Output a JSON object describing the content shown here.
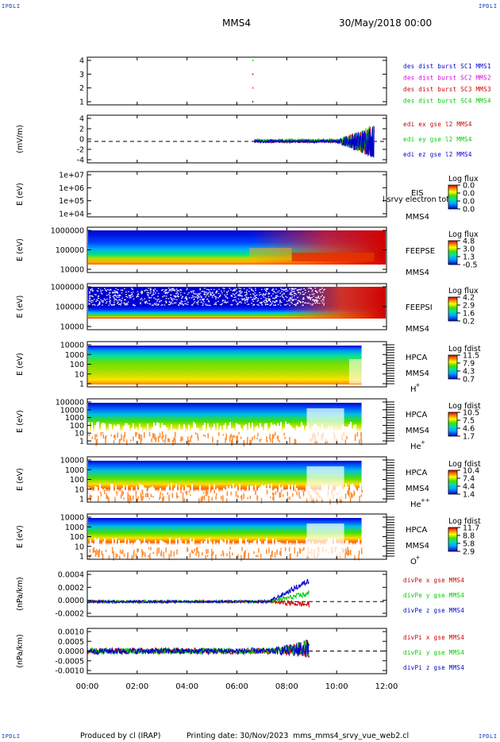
{
  "header": {
    "spacecraft": "MMS4",
    "date": "30/May/2018 00:00",
    "corner_label": "IPDLI"
  },
  "footer": {
    "produced_by": "Produced by cl (IRAP)",
    "printing_date": "Printing date: 30/Nov/2023",
    "filename": "mms_mms4_srvy_vue_web2.cl"
  },
  "colors": {
    "red": "#cc0000",
    "magenta": "#e000e0",
    "green": "#00cc00",
    "blue": "#0000cc"
  },
  "chart_data": {
    "type": "multi-panel",
    "x_ticks": [
      "00:00",
      "02:00",
      "04:00",
      "06:00",
      "08:00",
      "10:00",
      "12:00"
    ],
    "x_range_hours": [
      0,
      12
    ],
    "panels": [
      {
        "name": "burst",
        "type": "scatter",
        "ylabel": "",
        "yticks": [
          "4",
          "3",
          "2",
          "1"
        ],
        "legend": [
          {
            "text": "des dist burst SC1 MMS1",
            "color": "#0000cc"
          },
          {
            "text": "des dist burst SC2 MMS2",
            "color": "#e000e0"
          },
          {
            "text": "des dist burst SC3 MMS3",
            "color": "#cc0000"
          },
          {
            "text": "des dist burst SC4 MMS4",
            "color": "#00cc00"
          }
        ],
        "marks": [
          {
            "x": 6.62,
            "y": 4,
            "color": "#00cc00"
          },
          {
            "x": 6.62,
            "y": 3,
            "color": "#cc0000"
          },
          {
            "x": 6.62,
            "y": 2,
            "color": "#e000e0"
          },
          {
            "x": 6.62,
            "y": 1,
            "color": "#0000cc"
          }
        ]
      },
      {
        "name": "edi",
        "type": "line",
        "ylabel": "(mV/m)",
        "yticks": [
          "4",
          "2",
          "0",
          "-2",
          "-4"
        ],
        "ylim": [
          -4,
          5
        ],
        "data_start_hour": 6.7,
        "legend": [
          {
            "text": "edi ex gse l2 MMS4",
            "color": "#cc0000"
          },
          {
            "text": "edi ey gse l2 MMS4",
            "color": "#00cc00"
          },
          {
            "text": "edi ez gse l2 MMS4",
            "color": "#0000cc"
          }
        ]
      },
      {
        "name": "eis",
        "type": "heatmap",
        "ylabel": "E (eV)",
        "yticks": [
          "1e+07",
          "1e+06",
          "1e+05",
          "1e+04"
        ],
        "instrument": "EIS",
        "subtitle": "l srvy electron tof",
        "sc": "MMS4",
        "colorbar": {
          "title": "Log flux",
          "ticks": [
            "0.0",
            "0.0",
            "0.0",
            "0.0"
          ]
        }
      },
      {
        "name": "feepse",
        "type": "heatmap",
        "ylabel": "E (eV)",
        "yticks": [
          "1000000",
          "100000",
          "10000"
        ],
        "instrument": "FEEPSE",
        "sc": "MMS4",
        "colorbar": {
          "title": "Log flux",
          "ticks": [
            "4.8",
            "3.0",
            "1.3",
            "-0.5"
          ]
        }
      },
      {
        "name": "feepsi",
        "type": "heatmap",
        "ylabel": "E (eV)",
        "yticks": [
          "1000000",
          "100000",
          "10000"
        ],
        "instrument": "FEEPSI",
        "sc": "MMS4",
        "colorbar": {
          "title": "Log flux",
          "ticks": [
            "4.2",
            "2.9",
            "1.6",
            "0.2"
          ]
        }
      },
      {
        "name": "hpca-h",
        "type": "heatmap",
        "ylabel": "E (eV)",
        "yticks": [
          "10000",
          "1000",
          "100",
          "10",
          "1"
        ],
        "instrument": "HPCA",
        "sc": "MMS4",
        "species": "H",
        "species_sup": "+",
        "data_end_hour": 11.0,
        "colorbar": {
          "title": "Log fdist",
          "ticks": [
            "11.5",
            "7.9",
            "4.3",
            "0.7"
          ]
        }
      },
      {
        "name": "hpca-he",
        "type": "heatmap",
        "ylabel": "E (eV)",
        "yticks": [
          "100000",
          "10000",
          "1000",
          "100",
          "10",
          "1"
        ],
        "instrument": "HPCA",
        "sc": "MMS4",
        "species": "He",
        "species_sup": "+",
        "data_end_hour": 11.0,
        "colorbar": {
          "title": "Log fdist",
          "ticks": [
            "10.5",
            "7.5",
            "4.6",
            "1.7"
          ]
        }
      },
      {
        "name": "hpca-he2",
        "type": "heatmap",
        "ylabel": "E (eV)",
        "yticks": [
          "10000",
          "1000",
          "100",
          "10",
          "1"
        ],
        "instrument": "HPCA",
        "sc": "MMS4",
        "species": "He",
        "species_sup": "++",
        "data_end_hour": 11.0,
        "colorbar": {
          "title": "Log fdist",
          "ticks": [
            "10.4",
            "7.4",
            "4.4",
            "1.4"
          ]
        }
      },
      {
        "name": "hpca-o",
        "type": "heatmap",
        "ylabel": "E (eV)",
        "yticks": [
          "10000",
          "1000",
          "100",
          "10",
          "1"
        ],
        "instrument": "HPCA",
        "sc": "MMS4",
        "species": "O",
        "species_sup": "+",
        "data_end_hour": 11.0,
        "colorbar": {
          "title": "Log fdist",
          "ticks": [
            "11.7",
            "8.8",
            "5.8",
            "2.9"
          ]
        }
      },
      {
        "name": "divpe",
        "type": "line",
        "ylabel": "(nPa/km)",
        "yticks": [
          "0.0004",
          "0.0002",
          "0.0000",
          "-0.0002"
        ],
        "ylim": [
          -0.0002,
          0.00045
        ],
        "data_end_hour": 8.9,
        "legend": [
          {
            "text": "divPe x gse MMS4",
            "color": "#cc0000"
          },
          {
            "text": "divPe y gse MMS4",
            "color": "#00cc00"
          },
          {
            "text": "divPe z gse MMS4",
            "color": "#0000cc"
          }
        ]
      },
      {
        "name": "divpi",
        "type": "line",
        "ylabel": "(nPa/km)",
        "yticks": [
          "0.0010",
          "0.0005",
          "0.0000",
          "-0.0005",
          "-0.0010"
        ],
        "ylim": [
          -0.0013,
          0.0013
        ],
        "data_end_hour": 8.9,
        "legend": [
          {
            "text": "divPi x gse MMS4",
            "color": "#cc0000"
          },
          {
            "text": "divPi y gse MMS4",
            "color": "#00cc00"
          },
          {
            "text": "divPi z gse MMS4",
            "color": "#0000cc"
          }
        ]
      }
    ]
  }
}
